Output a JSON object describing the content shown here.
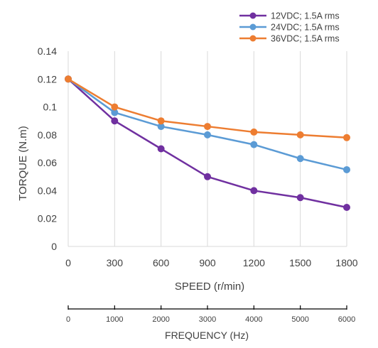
{
  "chart_data": {
    "type": "line",
    "xlabel": "SPEED (r/min)",
    "ylabel": "TORQUE (N.m)",
    "x": [
      0,
      300,
      600,
      900,
      1200,
      1500,
      1800
    ],
    "x_tick_labels": [
      "0",
      "300",
      "600",
      "900",
      "1200",
      "1500",
      "1800"
    ],
    "ylim": [
      0,
      0.14
    ],
    "y_ticks": [
      0,
      0.02,
      0.04,
      0.06,
      0.08,
      0.1,
      0.12,
      0.14
    ],
    "y_tick_labels": [
      "0",
      "0.02",
      "0.04",
      "0.06",
      "0.08",
      "0.1",
      "0.12",
      "0.14"
    ],
    "grid": "vertical",
    "legend_position": "top-right",
    "series": [
      {
        "name": "12VDC; 1.5A rms",
        "color": "#7030a0",
        "values": [
          0.12,
          0.09,
          0.07,
          0.05,
          0.04,
          0.035,
          0.028
        ]
      },
      {
        "name": "24VDC; 1.5A rms",
        "color": "#5b9bd5",
        "values": [
          0.12,
          0.096,
          0.086,
          0.08,
          0.073,
          0.063,
          0.055
        ]
      },
      {
        "name": "36VDC; 1.5A rms",
        "color": "#ed7d31",
        "values": [
          0.12,
          0.1,
          0.09,
          0.086,
          0.082,
          0.08,
          0.078
        ]
      }
    ],
    "secondary_axis": {
      "label": "FREQUENCY (Hz)",
      "tick_labels": [
        "0",
        "1000",
        "2000",
        "3000",
        "4000",
        "5000",
        "6000"
      ]
    }
  }
}
